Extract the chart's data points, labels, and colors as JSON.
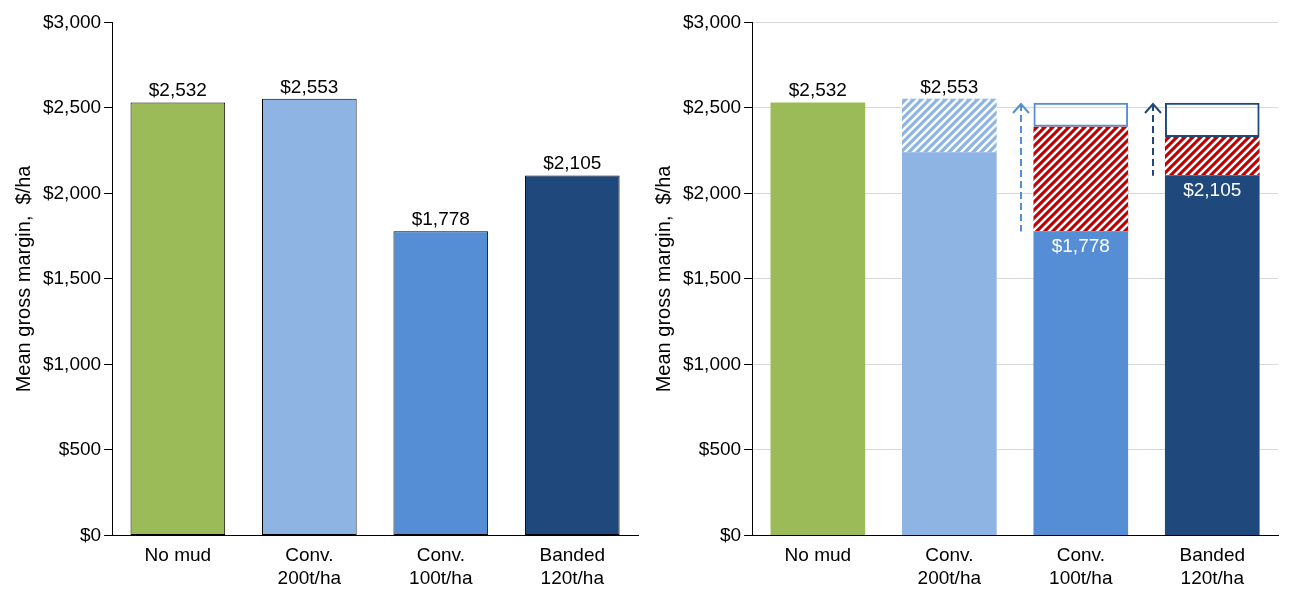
{
  "chart_data": [
    {
      "type": "bar",
      "categories": [
        "No mud",
        "Conv.\n200t/ha",
        "Conv.\n100t/ha",
        "Banded\n120t/ha"
      ],
      "ylabel": "Mean gross margin,  $/ha",
      "ylim": [
        0,
        3000
      ],
      "yticks": [
        {
          "value": 0,
          "label": "$0"
        },
        {
          "value": 500,
          "label": "$500"
        },
        {
          "value": 1000,
          "label": "$1,000"
        },
        {
          "value": 1500,
          "label": "$1,500"
        },
        {
          "value": 2000,
          "label": "$2,000"
        },
        {
          "value": 2500,
          "label": "$2,500"
        },
        {
          "value": 3000,
          "label": "$3,000"
        }
      ],
      "grid": false,
      "legend": false,
      "series": [
        {
          "values": [
            2532,
            2553,
            1778,
            2105
          ],
          "colors": [
            "#9bbb59",
            "#8eb4e3",
            "#558ed5",
            "#1f497d"
          ],
          "value_labels": [
            "$2,532",
            "$2,553",
            "$1,778",
            "$2,105"
          ]
        }
      ]
    },
    {
      "type": "bar",
      "stacked": true,
      "categories": [
        "No mud",
        "Conv.\n200t/ha",
        "Conv.\n100t/ha",
        "Banded\n120t/ha"
      ],
      "ylabel": "Mean gross margin,  $/ha",
      "ylim": [
        0,
        3000
      ],
      "yticks": [
        {
          "value": 0,
          "label": "$0"
        },
        {
          "value": 500,
          "label": "$500"
        },
        {
          "value": 1000,
          "label": "$1,000"
        },
        {
          "value": 1500,
          "label": "$1,500"
        },
        {
          "value": 2000,
          "label": "$2,000"
        },
        {
          "value": 2500,
          "label": "$2,500"
        },
        {
          "value": 3000,
          "label": "$3,000"
        }
      ],
      "grid": "y",
      "legend": false,
      "annotations": [
        {
          "text": "$2,553",
          "x": "Conv.\n200t/ha",
          "y": 2553
        }
      ],
      "series": [
        {
          "values": [
            2532,
            2240,
            1778,
            2105
          ],
          "colors": [
            "#9bbb59",
            "#8eb4e3",
            "#558ed5",
            "#1f497d"
          ],
          "value_labels": [
            "$2,532",
            null,
            "$1,778",
            "$2,105"
          ]
        },
        {
          "values": [
            null,
            313,
            612,
            225
          ],
          "colors": [
            null,
            "#8eb4e3",
            "#c00000",
            "#c00000"
          ]
        },
        {
          "values": [
            null,
            null,
            140,
            200
          ],
          "colors": [
            null,
            null,
            "#558ed5",
            "#1f497d"
          ],
          "line_style": "dashed"
        }
      ]
    }
  ]
}
